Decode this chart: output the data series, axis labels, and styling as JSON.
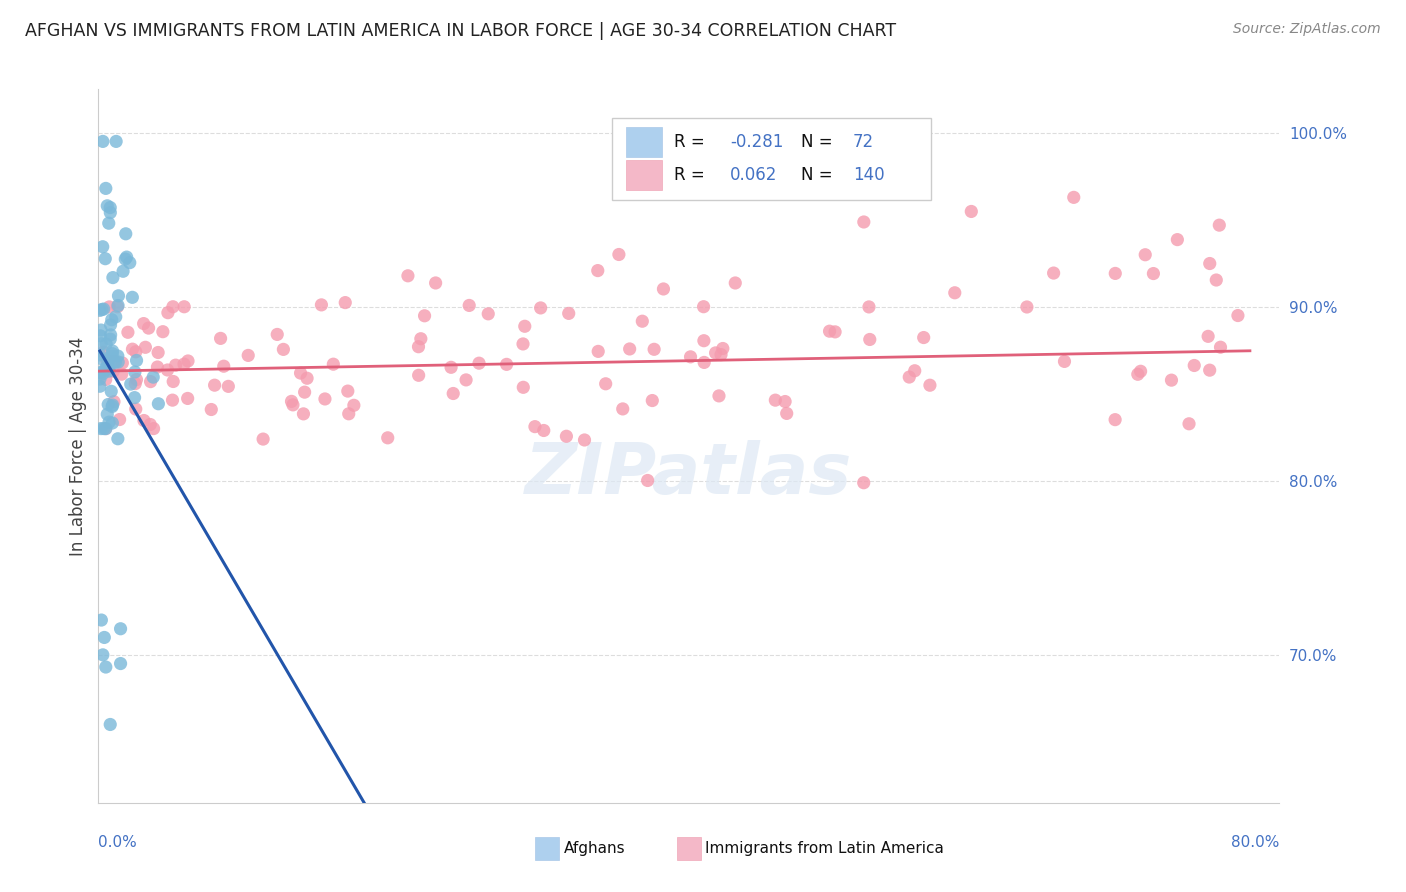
{
  "title": "AFGHAN VS IMMIGRANTS FROM LATIN AMERICA IN LABOR FORCE | AGE 30-34 CORRELATION CHART",
  "source": "Source: ZipAtlas.com",
  "ylabel": "In Labor Force | Age 30-34",
  "R_blue": -0.281,
  "N_blue": 72,
  "R_pink": 0.062,
  "N_pink": 140,
  "blue_dot_color": "#7ab8d9",
  "pink_dot_color": "#f49bae",
  "blue_line_color": "#2255aa",
  "pink_line_color": "#e0607a",
  "blue_legend_color": "#aed0ee",
  "pink_legend_color": "#f4b8c8",
  "xmin": 0.0,
  "xmax": 0.8,
  "ymin": 0.615,
  "ymax": 1.025,
  "ytick_vals": [
    0.7,
    0.8,
    0.9,
    1.0
  ],
  "ytick_labels": [
    "70.0%",
    "80.0%",
    "90.0%",
    "100.0%"
  ],
  "watermark": "ZIPatlas",
  "grid_color": "#dddddd",
  "title_color": "#222222",
  "source_color": "#888888",
  "axis_label_color": "#444444",
  "tick_label_color": "#4472c4"
}
